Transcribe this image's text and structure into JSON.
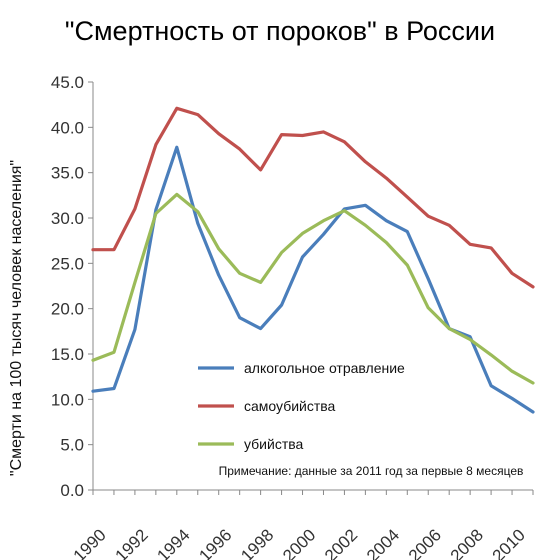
{
  "chart_data": {
    "type": "line",
    "title": "\"Смертность от пороков\" в России",
    "xlabel": "",
    "ylabel": "\"Смерти на 100 тысяч человек населения\"",
    "x": [
      1990,
      1991,
      1992,
      1993,
      1994,
      1995,
      1996,
      1997,
      1998,
      1999,
      2000,
      2001,
      2002,
      2003,
      2004,
      2005,
      2006,
      2007,
      2008,
      2009,
      2010,
      2011
    ],
    "x_tick_labels": [
      "1990",
      "1992",
      "1994",
      "1996",
      "1998",
      "2000",
      "2002",
      "2004",
      "2006",
      "2008",
      "2010"
    ],
    "x_ticks": [
      1990,
      1992,
      1994,
      1996,
      1998,
      2000,
      2002,
      2004,
      2006,
      2008,
      2010
    ],
    "y_tick_labels": [
      "0.0",
      "5.0",
      "10.0",
      "15.0",
      "20.0",
      "25.0",
      "30.0",
      "35.0",
      "40.0",
      "45.0"
    ],
    "y_ticks": [
      0,
      5,
      10,
      15,
      20,
      25,
      30,
      35,
      40,
      45
    ],
    "ylim": [
      0,
      45
    ],
    "xlim": [
      1990,
      2011
    ],
    "grid": false,
    "series": [
      {
        "name": "алкогольное отравление",
        "color": "#4a7ebb",
        "values": [
          10.9,
          11.2,
          17.7,
          30.9,
          37.8,
          29.4,
          23.7,
          19.0,
          17.8,
          20.4,
          25.7,
          28.2,
          31.0,
          31.4,
          29.7,
          28.5,
          23.3,
          17.8,
          16.9,
          11.5,
          10.1,
          8.6
        ]
      },
      {
        "name": "самоубийства",
        "color": "#c0504d",
        "values": [
          26.5,
          26.5,
          31.0,
          38.1,
          42.1,
          41.4,
          39.3,
          37.6,
          35.3,
          39.2,
          39.1,
          39.5,
          38.4,
          36.2,
          34.4,
          32.3,
          30.2,
          29.2,
          27.1,
          26.7,
          23.9,
          22.4
        ]
      },
      {
        "name": "убийства",
        "color": "#9bbb59",
        "values": [
          14.3,
          15.2,
          22.9,
          30.5,
          32.6,
          30.7,
          26.6,
          23.9,
          22.9,
          26.2,
          28.3,
          29.7,
          30.8,
          29.2,
          27.3,
          24.8,
          20.1,
          17.8,
          16.6,
          14.9,
          13.1,
          11.8
        ]
      }
    ],
    "legend_position": "center-bottom",
    "note": "Примечание: данные за 2011 год за первые 8 месяцев"
  }
}
